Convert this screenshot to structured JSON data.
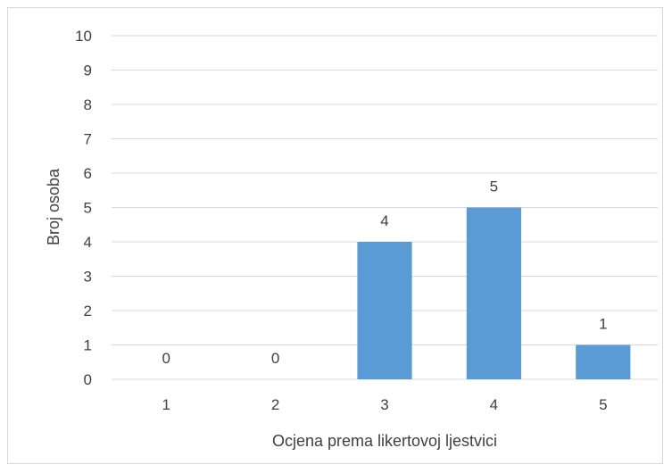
{
  "chart_data": {
    "type": "bar",
    "title": "",
    "xlabel": "Ocjena prema likertovoj ljestvici",
    "ylabel": "Broj osoba",
    "categories": [
      "1",
      "2",
      "3",
      "4",
      "5"
    ],
    "values": [
      0,
      0,
      4,
      5,
      1
    ],
    "data_labels": [
      "0",
      "0",
      "4",
      "5",
      "1"
    ],
    "ylim": [
      0,
      10
    ],
    "yticks": [
      "0",
      "1",
      "2",
      "3",
      "4",
      "5",
      "6",
      "7",
      "8",
      "9",
      "10"
    ],
    "grid": true,
    "legend": "none",
    "bar_color": "#5b9bd5",
    "grid_color": "#d9d9d9",
    "text_color": "#404040"
  }
}
